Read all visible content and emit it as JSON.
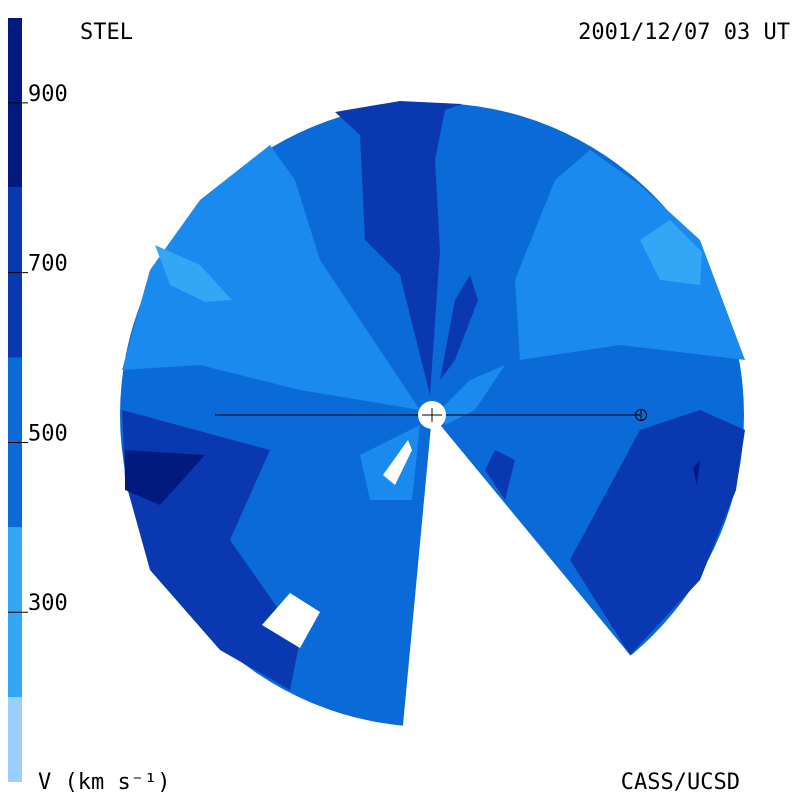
{
  "header": {
    "left": "STEL",
    "right": "2001/12/07 03 UT"
  },
  "colorbar": {
    "lim": [
      100,
      1000
    ],
    "ticks": [
      300,
      500,
      700,
      900
    ],
    "levels": [
      100,
      200,
      400,
      600,
      800,
      1000
    ],
    "colors": [
      "#99d0ff",
      "#33a6f5",
      "#0a6ad8",
      "#0a38b0",
      "#001a80"
    ]
  },
  "footer": {
    "left": "V (km s⁻¹)",
    "right": "CASS/UCSD"
  }
}
